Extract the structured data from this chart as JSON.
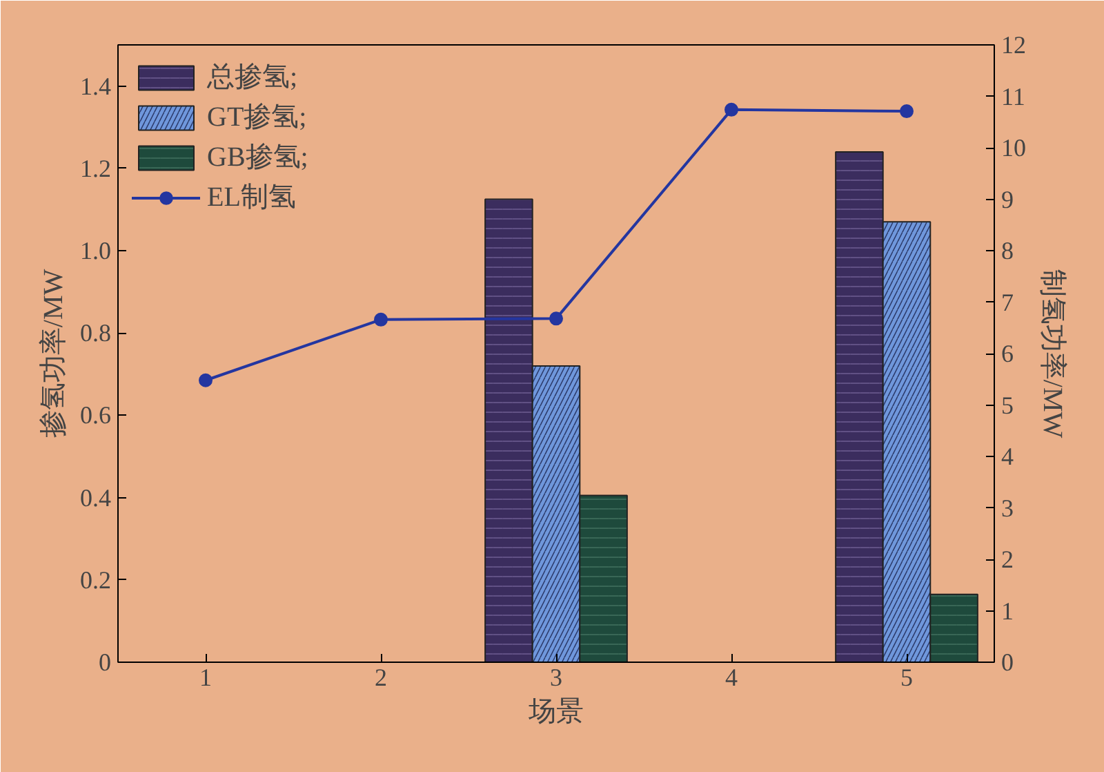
{
  "chart_data": {
    "type": "bar",
    "xlabel": "场景",
    "ylabel": "掺氢功率/MW",
    "y2label": "制氢功率/MW",
    "categories": [
      "1",
      "2",
      "3",
      "4",
      "5"
    ],
    "series": [
      {
        "name": "总掺氢;",
        "color": "#3b2d5e",
        "values": [
          null,
          null,
          1.125,
          null,
          1.24
        ]
      },
      {
        "name": "GT掺氢;",
        "color": "#6f97dc",
        "values": [
          null,
          null,
          0.72,
          null,
          1.07
        ]
      },
      {
        "name": "GB掺氢;",
        "color": "#1e4a3c",
        "values": [
          null,
          null,
          0.405,
          null,
          0.165
        ]
      },
      {
        "name": "EL制氢",
        "type": "line",
        "axis": "y2",
        "color": "#2436a0",
        "values": [
          5.48,
          6.66,
          6.68,
          10.74,
          10.71
        ]
      }
    ],
    "ylim": [
      0,
      1.5
    ],
    "yticks": [
      0,
      0.2,
      0.4,
      0.6,
      0.8,
      {
        "value": 1,
        "label": "1.0"
      },
      1.2,
      1.4
    ],
    "y2lim": [
      0,
      12
    ],
    "y2ticks": [
      0,
      1,
      2,
      3,
      4,
      5,
      6,
      7,
      8,
      9,
      10,
      11,
      12
    ],
    "legend": "top left",
    "marker": "circle",
    "grid": false
  }
}
